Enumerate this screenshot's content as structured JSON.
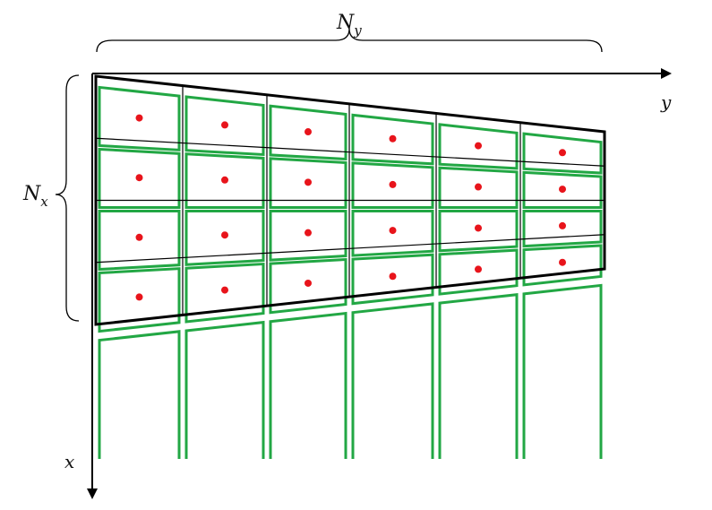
{
  "labels": {
    "ny_main": "N",
    "ny_sub": "y",
    "nx_main": "N",
    "nx_sub": "x",
    "y_axis": "y",
    "x_axis": "x"
  },
  "grid": {
    "rows": 4,
    "cols": 6
  },
  "colors": {
    "cell_outline": "#22a744",
    "center_dot": "#e8141b",
    "lines": "#000000"
  }
}
